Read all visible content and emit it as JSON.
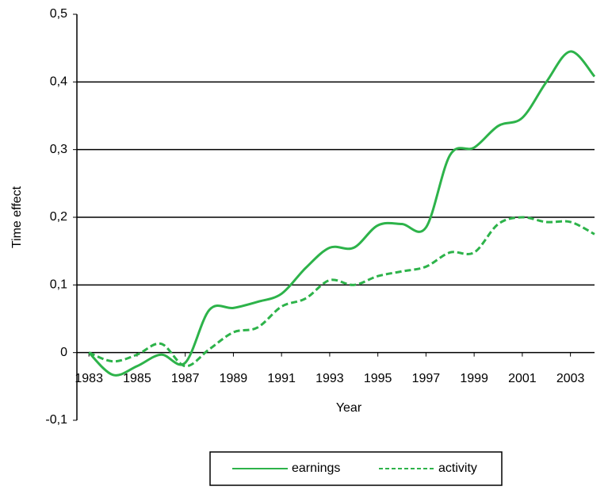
{
  "chart_data": {
    "type": "line",
    "x_label": "Year",
    "y_label": "Time effect",
    "x": [
      1983,
      1984,
      1985,
      1986,
      1987,
      1988,
      1989,
      1990,
      1991,
      1992,
      1993,
      1994,
      1995,
      1996,
      1997,
      1998,
      1999,
      2000,
      2001,
      2002,
      2003,
      2004
    ],
    "series": [
      {
        "name": "earnings",
        "color": "#2db34a",
        "dash": "solid",
        "values": [
          0,
          -0.033,
          -0.02,
          -0.003,
          -0.015,
          0.063,
          0.066,
          0.075,
          0.087,
          0.125,
          0.155,
          0.155,
          0.188,
          0.19,
          0.185,
          0.292,
          0.303,
          0.335,
          0.347,
          0.4,
          0.445,
          0.408
        ]
      },
      {
        "name": "activity",
        "color": "#2db34a",
        "dash": "dashed",
        "values": [
          0,
          -0.013,
          -0.003,
          0.013,
          -0.02,
          0.005,
          0.03,
          0.037,
          0.068,
          0.08,
          0.107,
          0.1,
          0.113,
          0.12,
          0.127,
          0.148,
          0.148,
          0.19,
          0.2,
          0.193,
          0.193,
          0.175
        ]
      }
    ],
    "xlim": [
      1982.5,
      2004
    ],
    "xticks": [
      1983,
      1985,
      1987,
      1989,
      1991,
      1993,
      1995,
      1997,
      1999,
      2001,
      2003
    ],
    "ylim": [
      -0.1,
      0.5
    ],
    "yticks": [
      {
        "value": -0.1,
        "label": "-0,1"
      },
      0,
      {
        "value": 0.1,
        "label": "0,1"
      },
      {
        "value": 0.2,
        "label": "0,2"
      },
      {
        "value": 0.3,
        "label": "0,3"
      },
      {
        "value": 0.4,
        "label": "0,4"
      },
      {
        "value": 0.5,
        "label": "0,5"
      }
    ],
    "grid": true,
    "legend": "bottom"
  }
}
